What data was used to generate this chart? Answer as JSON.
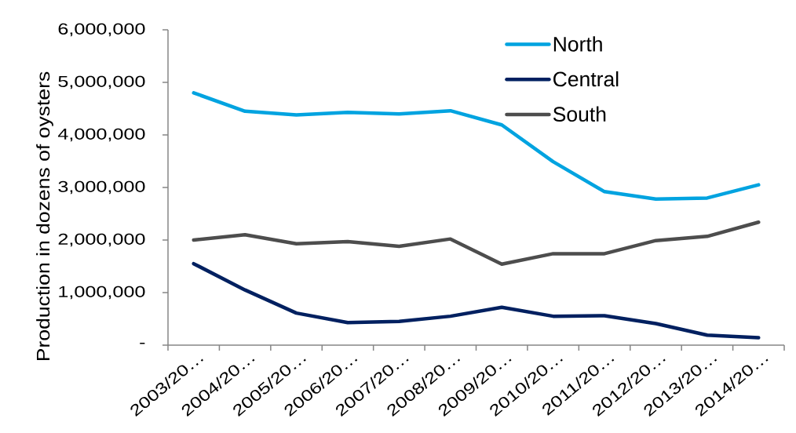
{
  "chart_data": {
    "type": "line",
    "ylabel": "Production in dozens of oysters",
    "categories": [
      "2003/20…",
      "2004/20…",
      "2005/20…",
      "2006/20…",
      "2007/20…",
      "2008/20…",
      "2009/20…",
      "2010/20…",
      "2011/20…",
      "2012/20…",
      "2013/20…",
      "2014/20…"
    ],
    "series": [
      {
        "name": "North",
        "color": "#00a3e0",
        "values": [
          4800000,
          4450000,
          4380000,
          4430000,
          4400000,
          4460000,
          4190000,
          3490000,
          2920000,
          2780000,
          2800000,
          3050000
        ]
      },
      {
        "name": "Central",
        "color": "#002060",
        "values": [
          1550000,
          1050000,
          610000,
          430000,
          450000,
          550000,
          720000,
          550000,
          560000,
          410000,
          190000,
          140000
        ]
      },
      {
        "name": "South",
        "color": "#4d4d4d",
        "values": [
          2000000,
          2100000,
          1930000,
          1970000,
          1880000,
          2020000,
          1540000,
          1740000,
          1740000,
          1990000,
          2070000,
          2340000
        ]
      }
    ],
    "ylim": [
      0,
      6000000
    ],
    "yticks": [
      {
        "value": 0,
        "label": "-"
      },
      {
        "value": 1000000,
        "label": "1,000,000"
      },
      {
        "value": 2000000,
        "label": "2,000,000"
      },
      {
        "value": 3000000,
        "label": "3,000,000"
      },
      {
        "value": 4000000,
        "label": "4,000,000"
      },
      {
        "value": 5000000,
        "label": "5,000,000"
      },
      {
        "value": 6000000,
        "label": "6,000,000"
      }
    ],
    "legend": "top right",
    "grid": false,
    "marker": "none",
    "line_style": "solid"
  }
}
